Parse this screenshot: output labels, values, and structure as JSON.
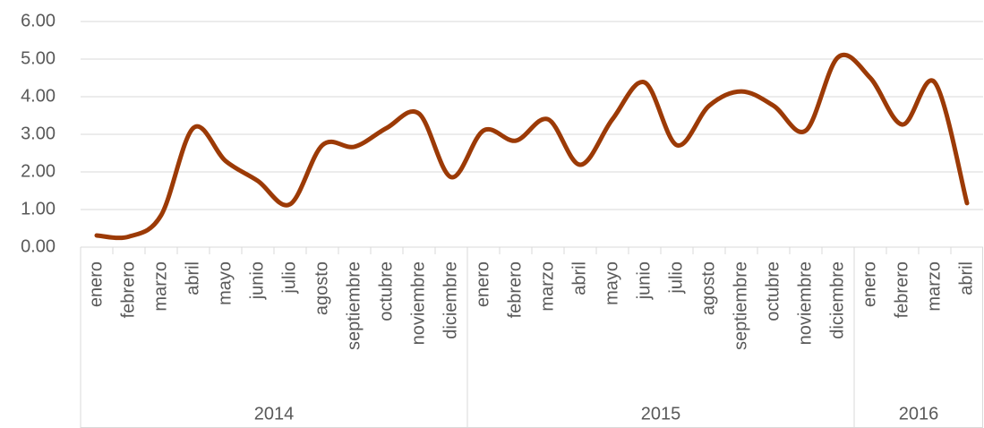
{
  "chart_data": {
    "type": "line",
    "groups": [
      {
        "name": "2014",
        "categories": [
          "enero",
          "febrero",
          "marzo",
          "abril",
          "mayo",
          "junio",
          "julio",
          "agosto",
          "septiembre",
          "octubre",
          "noviembre",
          "diciembre"
        ]
      },
      {
        "name": "2015",
        "categories": [
          "enero",
          "febrero",
          "marzo",
          "abril",
          "mayo",
          "junio",
          "julio",
          "agosto",
          "septiembre",
          "octubre",
          "noviembre",
          "diciembre"
        ]
      },
      {
        "name": "2016",
        "categories": [
          "enero",
          "febrero",
          "marzo",
          "abril"
        ]
      }
    ],
    "values": [
      0.31,
      0.28,
      0.85,
      3.17,
      2.29,
      1.76,
      1.14,
      2.71,
      2.67,
      3.17,
      3.55,
      1.86,
      3.1,
      2.83,
      3.4,
      2.19,
      3.4,
      4.38,
      2.71,
      3.76,
      4.14,
      3.76,
      3.1,
      5.05,
      4.5,
      3.26,
      4.38,
      1.17
    ],
    "color": "#9c3a06",
    "ylim": [
      0,
      6
    ],
    "yticks": [
      {
        "value": 0,
        "label": "0.00"
      },
      {
        "value": 1,
        "label": "1.00"
      },
      {
        "value": 2,
        "label": "2.00"
      },
      {
        "value": 3,
        "label": "3.00"
      },
      {
        "value": 4,
        "label": "4.00"
      },
      {
        "value": 5,
        "label": "5.00"
      },
      {
        "value": 6,
        "label": "6.00"
      }
    ],
    "grid": true
  }
}
